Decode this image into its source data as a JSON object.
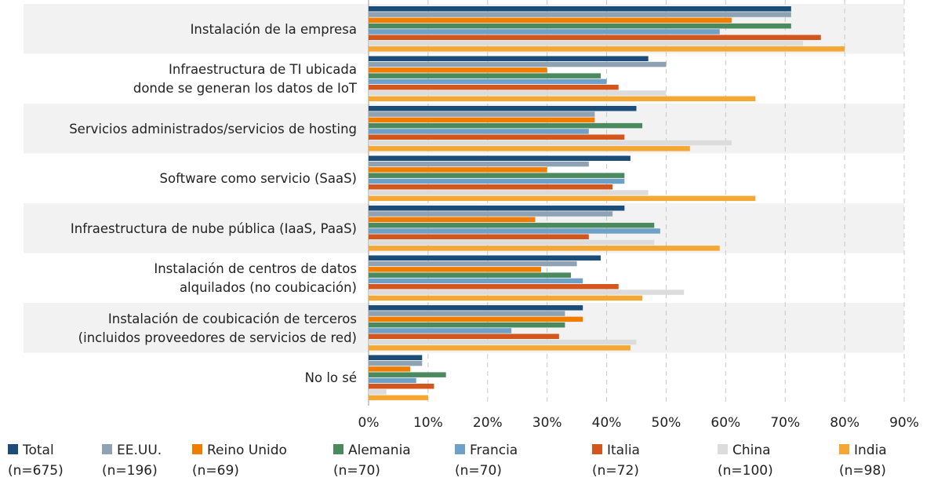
{
  "chart_data": {
    "type": "barh",
    "categories": [
      "Instalación de la empresa",
      "Infraestructura de TI ubicada\ndonde se generan los datos de IoT",
      "Servicios administrados/servicios de hosting",
      "Software como servicio (SaaS)",
      "Infraestructura de nube pública (IaaS, PaaS)",
      "Instalación de centros de datos\nalquilados (no coubicación)",
      "Instalación de coubicación de terceros\n(incluidos proveedores de servicios de red)",
      "No lo sé"
    ],
    "series": [
      {
        "name": "Total",
        "sample": "(n=675)",
        "color": "#1b4d78",
        "values": [
          71,
          47,
          45,
          44,
          43,
          39,
          36,
          9
        ]
      },
      {
        "name": "EE.UU.",
        "sample": "(n=196)",
        "color": "#8ea2b4",
        "values": [
          71,
          50,
          38,
          37,
          41,
          35,
          33,
          9
        ]
      },
      {
        "name": "Reino Unido",
        "sample": "(n=69)",
        "color": "#f07d00",
        "values": [
          61,
          30,
          38,
          30,
          28,
          29,
          36,
          7
        ]
      },
      {
        "name": "Alemania",
        "sample": "(n=70)",
        "color": "#4a8a5e",
        "values": [
          71,
          39,
          46,
          43,
          48,
          34,
          33,
          13
        ]
      },
      {
        "name": "Francia",
        "sample": "(n=70)",
        "color": "#6fa0c8",
        "values": [
          59,
          40,
          37,
          43,
          49,
          36,
          24,
          8
        ]
      },
      {
        "name": "Italia",
        "sample": "(n=72)",
        "color": "#d3561c",
        "values": [
          76,
          42,
          43,
          41,
          37,
          42,
          32,
          11
        ]
      },
      {
        "name": "China",
        "sample": "(n=100)",
        "color": "#dcdcdc",
        "values": [
          73,
          50,
          61,
          47,
          48,
          53,
          45,
          3
        ]
      },
      {
        "name": "India",
        "sample": "(n=98)",
        "color": "#f5a733",
        "values": [
          80,
          65,
          54,
          65,
          59,
          46,
          44,
          10
        ]
      }
    ],
    "xlim": [
      0,
      90
    ],
    "xticks": [
      {
        "value": 0,
        "label": "0%"
      },
      {
        "value": 10,
        "label": "10%"
      },
      {
        "value": 20,
        "label": "20%"
      },
      {
        "value": 30,
        "label": "30%"
      },
      {
        "value": 40,
        "label": "40%"
      },
      {
        "value": 50,
        "label": "50%"
      },
      {
        "value": 60,
        "label": "60%"
      },
      {
        "value": 70,
        "label": "70%"
      },
      {
        "value": 80,
        "label": "80%"
      },
      {
        "value": 90,
        "label": "90%"
      }
    ],
    "grid": true
  }
}
